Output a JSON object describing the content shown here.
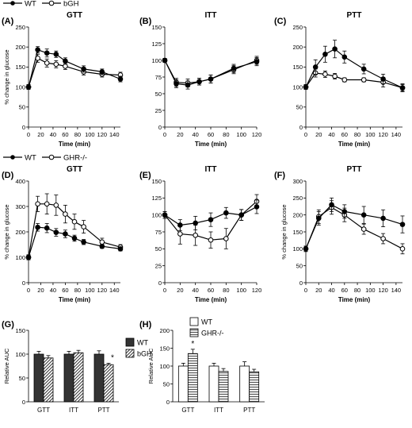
{
  "legends": {
    "top": {
      "wt": "WT",
      "mut": "bGH"
    },
    "middle": {
      "wt": "WT",
      "mut": "GHR-/-"
    }
  },
  "chart_data": [
    {
      "id": "A",
      "type": "line",
      "panel_label": "(A)",
      "title": "GTT",
      "xlabel": "Time (min)",
      "ylabel": "% change in glucose",
      "xlim": [
        0,
        150
      ],
      "ylim": [
        0,
        250
      ],
      "xticks": [
        0,
        20,
        40,
        60,
        80,
        100,
        120,
        140
      ],
      "yticks": [
        0,
        50,
        100,
        150,
        200,
        250
      ],
      "x": [
        0,
        15,
        30,
        45,
        60,
        90,
        120,
        150
      ],
      "series": [
        {
          "name": "WT",
          "marker": "filled",
          "values": [
            100,
            193,
            185,
            182,
            165,
            145,
            138,
            120
          ],
          "err": [
            6,
            8,
            10,
            8,
            8,
            8,
            7,
            7
          ]
        },
        {
          "name": "bGH",
          "marker": "open",
          "values": [
            100,
            172,
            160,
            157,
            152,
            138,
            132,
            130
          ],
          "err": [
            6,
            10,
            10,
            9,
            8,
            8,
            7,
            7
          ]
        }
      ]
    },
    {
      "id": "B",
      "type": "line",
      "panel_label": "(B)",
      "title": "ITT",
      "xlabel": "Time (min)",
      "ylabel": "",
      "xlim": [
        0,
        120
      ],
      "ylim": [
        0,
        150
      ],
      "xticks": [
        0,
        20,
        40,
        60,
        80,
        100,
        120
      ],
      "yticks": [
        0,
        25,
        50,
        75,
        100,
        125,
        150
      ],
      "x": [
        0,
        15,
        30,
        45,
        60,
        90,
        120
      ],
      "series": [
        {
          "name": "WT",
          "marker": "filled",
          "values": [
            100,
            65,
            63,
            68,
            72,
            88,
            98
          ],
          "err": [
            3,
            6,
            6,
            5,
            6,
            6,
            6
          ]
        },
        {
          "name": "bGH",
          "marker": "open",
          "values": [
            100,
            67,
            66,
            68,
            72,
            86,
            100
          ],
          "err": [
            3,
            6,
            6,
            5,
            6,
            6,
            6
          ]
        }
      ]
    },
    {
      "id": "C",
      "type": "line",
      "panel_label": "(C)",
      "title": "PTT",
      "xlabel": "Time (min)",
      "ylabel": "",
      "xlim": [
        0,
        150
      ],
      "ylim": [
        0,
        250
      ],
      "xticks": [
        0,
        20,
        40,
        60,
        80,
        100,
        120,
        140
      ],
      "yticks": [
        0,
        50,
        100,
        150,
        200,
        250
      ],
      "x": [
        0,
        15,
        30,
        45,
        60,
        90,
        120,
        150
      ],
      "series": [
        {
          "name": "WT",
          "marker": "filled",
          "values": [
            100,
            150,
            182,
            195,
            175,
            145,
            120,
            98
          ],
          "err": [
            6,
            18,
            20,
            22,
            15,
            12,
            12,
            10
          ]
        },
        {
          "name": "bGH",
          "marker": "open",
          "values": [
            100,
            135,
            132,
            127,
            118,
            118,
            112,
            98
          ],
          "err": [
            6,
            10,
            8,
            7,
            5,
            5,
            12,
            8
          ]
        }
      ]
    },
    {
      "id": "D",
      "type": "line",
      "panel_label": "(D)",
      "title": "GTT",
      "xlabel": "Time (min)",
      "ylabel": "% change in glucose",
      "xlim": [
        0,
        150
      ],
      "ylim": [
        0,
        400
      ],
      "xticks": [
        0,
        20,
        40,
        60,
        80,
        100,
        120,
        140
      ],
      "yticks": [
        0,
        100,
        200,
        300,
        400
      ],
      "x": [
        0,
        15,
        30,
        45,
        60,
        75,
        90,
        120,
        150
      ],
      "series": [
        {
          "name": "WT",
          "marker": "filled",
          "values": [
            100,
            218,
            215,
            198,
            192,
            175,
            160,
            143,
            133
          ],
          "err": [
            8,
            15,
            18,
            15,
            15,
            12,
            10,
            8,
            8
          ]
        },
        {
          "name": "GHR-/-",
          "marker": "open",
          "values": [
            100,
            310,
            310,
            305,
            270,
            240,
            220,
            160,
            140
          ],
          "err": [
            10,
            30,
            40,
            40,
            35,
            30,
            25,
            15,
            10
          ]
        }
      ]
    },
    {
      "id": "E",
      "type": "line",
      "panel_label": "(E)",
      "title": "ITT",
      "xlabel": "Time (min)",
      "ylabel": "",
      "xlim": [
        0,
        120
      ],
      "ylim": [
        0,
        150
      ],
      "xticks": [
        0,
        20,
        40,
        60,
        80,
        100,
        120
      ],
      "yticks": [
        0,
        25,
        50,
        75,
        100,
        125,
        150
      ],
      "x": [
        0,
        20,
        40,
        60,
        80,
        100,
        120
      ],
      "series": [
        {
          "name": "WT",
          "marker": "filled",
          "values": [
            100,
            85,
            88,
            93,
            103,
            100,
            112
          ],
          "err": [
            5,
            8,
            10,
            10,
            8,
            8,
            10
          ]
        },
        {
          "name": "GHR-/-",
          "marker": "open",
          "values": [
            100,
            72,
            70,
            63,
            65,
            100,
            120
          ],
          "err": [
            5,
            15,
            15,
            12,
            15,
            8,
            10
          ]
        }
      ]
    },
    {
      "id": "F",
      "type": "line",
      "panel_label": "(F)",
      "title": "PTT",
      "xlabel": "Time (min)",
      "ylabel": "% change in glucose",
      "xlim": [
        0,
        150
      ],
      "ylim": [
        0,
        300
      ],
      "xticks": [
        0,
        20,
        40,
        60,
        80,
        100,
        120,
        140
      ],
      "yticks": [
        0,
        50,
        100,
        150,
        200,
        250,
        300
      ],
      "x": [
        0,
        20,
        40,
        60,
        90,
        120,
        150
      ],
      "series": [
        {
          "name": "WT",
          "marker": "filled",
          "values": [
            100,
            190,
            230,
            210,
            200,
            190,
            172
          ],
          "err": [
            8,
            20,
            20,
            20,
            25,
            25,
            25
          ]
        },
        {
          "name": "GHR-/-",
          "marker": "open",
          "values": [
            100,
            195,
            222,
            200,
            158,
            130,
            100
          ],
          "err": [
            8,
            20,
            20,
            20,
            15,
            15,
            15
          ]
        }
      ]
    },
    {
      "id": "G",
      "type": "bar",
      "panel_label": "(G)",
      "ylabel": "Relative AUC",
      "categories": [
        "GTT",
        "ITT",
        "PTT"
      ],
      "ylim": [
        0,
        150
      ],
      "yticks": [
        0,
        50,
        100,
        150
      ],
      "series": [
        {
          "name": "WT",
          "pattern": "solid",
          "values": [
            100,
            100,
            100
          ],
          "err": [
            6,
            6,
            7
          ]
        },
        {
          "name": "bGH",
          "pattern": "diagonal",
          "values": [
            92,
            103,
            78
          ],
          "err": [
            5,
            5,
            3
          ]
        }
      ],
      "annotations": [
        {
          "category": "PTT",
          "series": "bGH",
          "text": "*"
        }
      ]
    },
    {
      "id": "H",
      "type": "bar",
      "panel_label": "(H)",
      "ylabel": "Relative AUC",
      "categories": [
        "GTT",
        "ITT",
        "PTT"
      ],
      "ylim": [
        0,
        200
      ],
      "yticks": [
        0,
        50,
        100,
        150,
        200
      ],
      "series": [
        {
          "name": "WT",
          "pattern": "white",
          "values": [
            100,
            100,
            100
          ],
          "err": [
            8,
            8,
            12
          ]
        },
        {
          "name": "GHR-/-",
          "pattern": "horizontal",
          "values": [
            135,
            85,
            84
          ],
          "err": [
            12,
            8,
            7
          ]
        }
      ],
      "annotations": [
        {
          "category": "GTT",
          "series": "GHR-/-",
          "text": "*"
        }
      ]
    }
  ]
}
